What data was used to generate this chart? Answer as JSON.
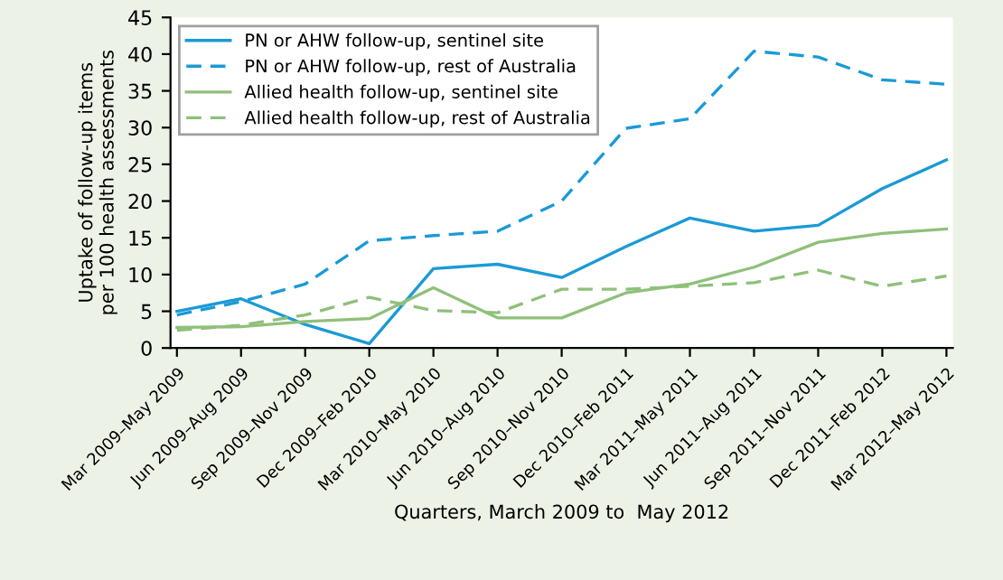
{
  "chart_data": {
    "type": "line",
    "xlabel": "Quarters, March 2009 to  May 2012",
    "ylabel": "Uptake of follow-up items\nper 100 health assessments",
    "categories": [
      "Mar 2009–May 2009",
      "Jun 2009–Aug 2009",
      "Sep 2009–Nov 2009",
      "Dec 2009–Feb 2010",
      "Mar 2010–May 2010",
      "Jun 2010–Aug 2010",
      "Sep 2010–Nov 2010",
      "Dec 2010–Feb 2011",
      "Mar 2011–May 2011",
      "Jun 2011–Aug 2011",
      "Sep 2011–Nov 2011",
      "Dec 2011–Feb 2012",
      "Mar 2012–May 2012"
    ],
    "series": [
      {
        "name": "PN or AHW follow-up, sentinel site",
        "color": "#1a9ad6",
        "line_style": "solid",
        "values": [
          5,
          6.7,
          3.2,
          0.6,
          10.8,
          11.4,
          9.6,
          13.8,
          17.7,
          15.9,
          16.7,
          21.7,
          25.6
        ]
      },
      {
        "name": "PN or AHW follow-up, rest of Australia",
        "color": "#1a9ad6",
        "line_style": "dashed",
        "values": [
          4.5,
          6.3,
          8.7,
          14.6,
          15.3,
          15.9,
          20,
          29.9,
          31.2,
          40.4,
          39.6,
          36.5,
          35.9
        ]
      },
      {
        "name": "Allied health follow-up, sentinel site",
        "color": "#8fc07a",
        "line_style": "solid",
        "values": [
          2.8,
          2.9,
          3.6,
          4,
          8.2,
          4.1,
          4.1,
          7.5,
          8.7,
          11,
          14.4,
          15.6,
          16.2
        ]
      },
      {
        "name": "Allied health follow-up, rest of Australia",
        "color": "#8fc07a",
        "line_style": "dashed",
        "values": [
          2.4,
          3.1,
          4.5,
          6.9,
          5.1,
          4.8,
          8,
          8,
          8.4,
          8.9,
          10.6,
          8.4,
          9.8
        ]
      }
    ],
    "ylim": [
      0,
      45
    ],
    "yticks": [
      0,
      5,
      10,
      15,
      20,
      25,
      30,
      35,
      40,
      45
    ],
    "grid": false,
    "legend": "top left",
    "marker": "none"
  }
}
